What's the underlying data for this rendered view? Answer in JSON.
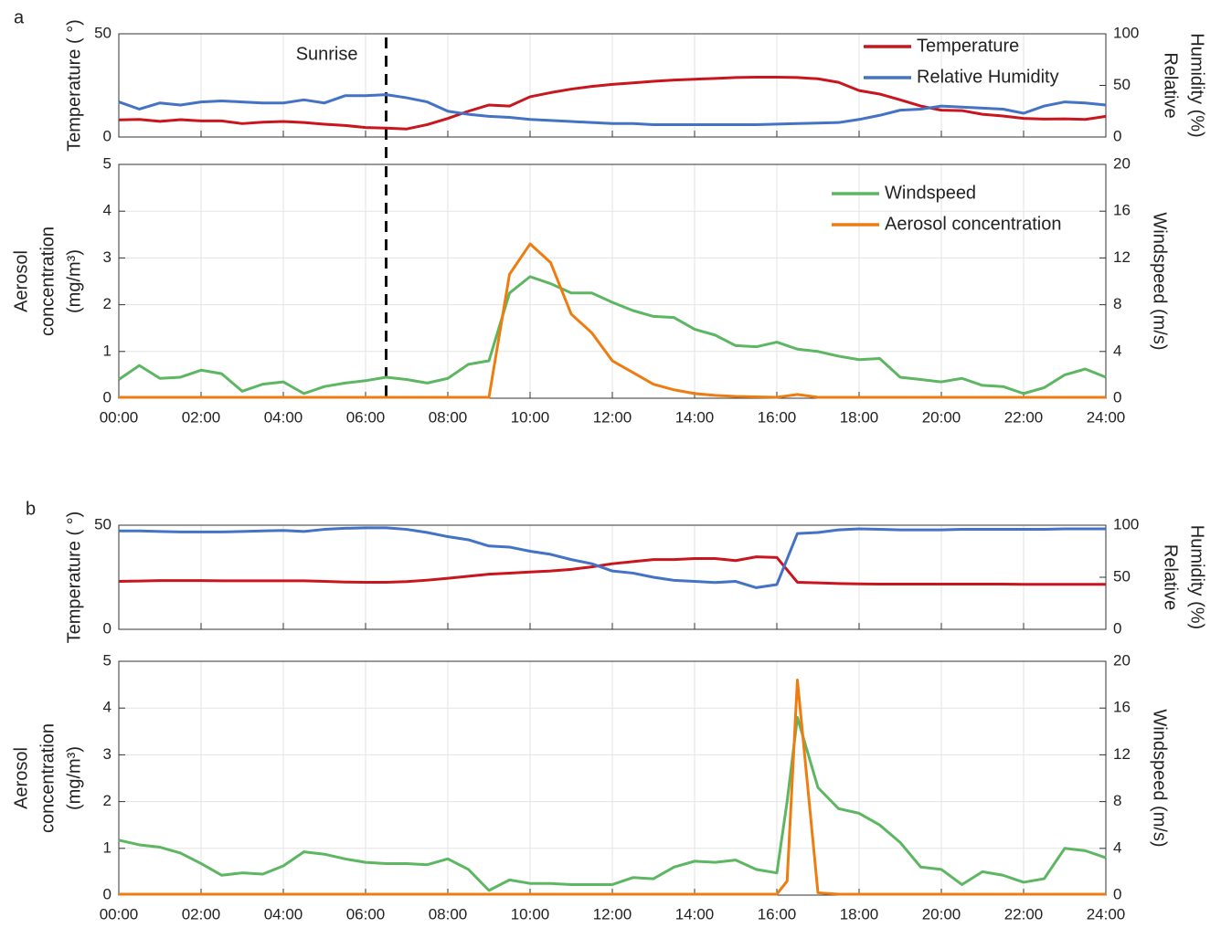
{
  "chart_data": [
    {
      "type": "line",
      "panel_label": "a",
      "ylabel": [
        "Temperature ( °)"
      ],
      "y2label": [
        "Relative",
        "Humidity (%)"
      ],
      "xlim": [
        0,
        24
      ],
      "xticks": [
        0,
        2,
        4,
        6,
        8,
        10,
        12,
        14,
        16,
        18,
        20,
        22,
        24
      ],
      "ylim": [
        0,
        50
      ],
      "yticks": [
        0,
        50
      ],
      "y2lim": [
        0,
        100
      ],
      "y2ticks": [
        0,
        50,
        100
      ],
      "grid": true,
      "legend": "upper right",
      "annotations": [
        {
          "text": "Sunrise",
          "x": 6.5
        }
      ],
      "x": [
        0,
        0.5,
        1,
        1.5,
        2,
        2.5,
        3,
        3.5,
        4,
        4.5,
        5,
        5.5,
        6,
        6.5,
        7,
        7.5,
        8,
        8.5,
        9,
        9.5,
        10,
        10.5,
        11,
        11.5,
        12,
        12.5,
        13,
        13.5,
        14,
        14.5,
        15,
        15.5,
        16,
        16.5,
        17,
        17.5,
        18,
        18.5,
        19,
        19.5,
        20,
        20.5,
        21,
        21.5,
        22,
        22.5,
        23,
        23.5,
        24
      ],
      "series": [
        {
          "name": "Temperature",
          "color": "#c9151e",
          "values": [
            8.3,
            8.5,
            7.6,
            8.4,
            7.8,
            7.8,
            6.5,
            7.2,
            7.5,
            7.0,
            6.2,
            5.6,
            4.6,
            4.3,
            3.9,
            6.0,
            9.0,
            12.5,
            15.5,
            15.0,
            19.5,
            21.5,
            23.2,
            24.5,
            25.5,
            26.2,
            27.0,
            27.6,
            28.0,
            28.4,
            28.8,
            29.0,
            29.0,
            28.8,
            28.2,
            26.5,
            22.5,
            20.8,
            18.0,
            15.0,
            13.0,
            12.8,
            11.0,
            10.2,
            9.0,
            8.7,
            8.8,
            8.5,
            10.0
          ]
        },
        {
          "name": "Relative Humidity",
          "color": "#4472c4",
          "axis": "y2",
          "values": [
            34,
            27,
            33,
            31,
            34,
            35,
            34,
            33,
            33,
            36,
            33,
            40,
            40,
            41,
            38,
            34,
            25,
            22,
            20,
            19,
            17,
            16,
            15,
            14,
            13,
            13,
            12,
            12,
            12,
            12,
            12,
            12,
            12.5,
            13,
            13.5,
            14,
            17,
            21,
            26,
            27,
            30,
            29,
            28,
            27,
            23,
            30,
            34,
            33,
            31
          ]
        }
      ]
    },
    {
      "type": "line",
      "ylabel": [
        "Aerosol",
        "concentration",
        "(mg/m³)"
      ],
      "y2label": [
        "Windspeed (m/s)"
      ],
      "xlim": [
        0,
        24
      ],
      "xticks": [
        {
          "value": 0,
          "label": "00:00"
        },
        {
          "value": 2,
          "label": "02:00"
        },
        {
          "value": 4,
          "label": "04:00"
        },
        {
          "value": 6,
          "label": "06:00"
        },
        {
          "value": 8,
          "label": "08:00"
        },
        {
          "value": 10,
          "label": "10:00"
        },
        {
          "value": 12,
          "label": "12:00"
        },
        {
          "value": 14,
          "label": "14:00"
        },
        {
          "value": 16,
          "label": "16:00"
        },
        {
          "value": 18,
          "label": "18:00"
        },
        {
          "value": 20,
          "label": "20:00"
        },
        {
          "value": 22,
          "label": "22:00"
        },
        {
          "value": 24,
          "label": "24:00"
        }
      ],
      "ylim": [
        0,
        5
      ],
      "yticks": [
        0,
        1,
        2,
        3,
        4,
        5
      ],
      "y2lim": [
        0,
        20
      ],
      "y2ticks": [
        0,
        4,
        8,
        12,
        16,
        20
      ],
      "grid": true,
      "legend": "upper right",
      "vlines": [
        6.5
      ],
      "x": [
        0,
        0.5,
        1,
        1.5,
        2,
        2.5,
        3,
        3.5,
        4,
        4.5,
        5,
        5.5,
        6,
        6.5,
        7,
        7.5,
        8,
        8.5,
        9,
        9.5,
        10,
        10.5,
        11,
        11.5,
        12,
        12.5,
        13,
        13.5,
        14,
        14.5,
        15,
        15.5,
        16,
        16.5,
        17,
        17.5,
        18,
        18.5,
        19,
        19.5,
        20,
        20.5,
        21,
        21.5,
        22,
        22.5,
        23,
        23.5,
        24
      ],
      "series": [
        {
          "name": "Windspeed",
          "color": "#5db662",
          "axis": "y2",
          "values": [
            1.6,
            2.8,
            1.7,
            1.8,
            2.4,
            2.1,
            0.6,
            1.2,
            1.4,
            0.4,
            1.0,
            1.3,
            1.5,
            1.8,
            1.6,
            1.3,
            1.7,
            2.9,
            3.2,
            9.0,
            10.4,
            9.8,
            9.0,
            9.0,
            8.2,
            7.5,
            7.0,
            6.9,
            5.9,
            5.4,
            4.5,
            4.4,
            4.8,
            4.2,
            4.0,
            3.6,
            3.3,
            3.4,
            1.8,
            1.6,
            1.4,
            1.7,
            1.1,
            1.0,
            0.4,
            0.9,
            2.0,
            2.5,
            1.8
          ]
        },
        {
          "name": "Aerosol concentration",
          "color": "#ee7d11",
          "values": [
            0.02,
            0.02,
            0.02,
            0.02,
            0.02,
            0.02,
            0.02,
            0.02,
            0.02,
            0.02,
            0.02,
            0.02,
            0.02,
            0.02,
            0.02,
            0.02,
            0.02,
            0.02,
            0.02,
            2.65,
            3.3,
            2.9,
            1.8,
            1.4,
            0.8,
            0.55,
            0.3,
            0.18,
            0.1,
            0.06,
            0.04,
            0.03,
            0.02,
            0.08,
            0.02,
            0.02,
            0.02,
            0.02,
            0.02,
            0.02,
            0.02,
            0.02,
            0.02,
            0.02,
            0.02,
            0.02,
            0.02,
            0.02,
            0.02
          ]
        }
      ]
    },
    {
      "type": "line",
      "panel_label": "b",
      "ylabel": [
        "Temperature ( °)"
      ],
      "y2label": [
        "Relative",
        "Humidity (%)"
      ],
      "xlim": [
        0,
        24
      ],
      "xticks": [
        0,
        2,
        4,
        6,
        8,
        10,
        12,
        14,
        16,
        18,
        20,
        22,
        24
      ],
      "ylim": [
        0,
        50
      ],
      "yticks": [
        0,
        50
      ],
      "y2lim": [
        0,
        100
      ],
      "y2ticks": [
        0,
        50,
        100
      ],
      "grid": true,
      "x": [
        0,
        0.5,
        1,
        1.5,
        2,
        2.5,
        3,
        3.5,
        4,
        4.5,
        5,
        5.5,
        6,
        6.5,
        7,
        7.5,
        8,
        8.5,
        9,
        9.5,
        10,
        10.5,
        11,
        11.5,
        12,
        12.5,
        13,
        13.5,
        14,
        14.5,
        15,
        15.5,
        16,
        16.5,
        17,
        17.5,
        18,
        18.5,
        19,
        19.5,
        20,
        20.5,
        21,
        21.5,
        22,
        22.5,
        23,
        23.5,
        24
      ],
      "series": [
        {
          "name": "Temperature",
          "color": "#c9151e",
          "values": [
            23,
            23.2,
            23.4,
            23.4,
            23.4,
            23.3,
            23.3,
            23.3,
            23.3,
            23.3,
            23,
            22.7,
            22.6,
            22.6,
            22.9,
            23.6,
            24.5,
            25.5,
            26.5,
            27,
            27.5,
            28,
            28.8,
            30,
            31.5,
            32.5,
            33.5,
            33.5,
            34,
            34,
            33,
            34.8,
            34.5,
            22.6,
            22.3,
            22,
            21.8,
            21.7,
            21.7,
            21.7,
            21.7,
            21.7,
            21.7,
            21.7,
            21.6,
            21.6,
            21.6,
            21.6,
            21.6
          ]
        },
        {
          "name": "Relative Humidity",
          "color": "#4472c4",
          "axis": "y2",
          "values": [
            94.5,
            94.5,
            94,
            93.5,
            93.5,
            93.5,
            94,
            94.5,
            95,
            94,
            96,
            97,
            97.5,
            97.5,
            96,
            93,
            89,
            86,
            80,
            79,
            75,
            72,
            67,
            63,
            56,
            54,
            50,
            47,
            46,
            45,
            46,
            40,
            43,
            92,
            93,
            95.5,
            96.5,
            96,
            95.5,
            95.5,
            95.5,
            96,
            96,
            96,
            96,
            96,
            96.5,
            96.5,
            96.5
          ]
        }
      ]
    },
    {
      "type": "line",
      "ylabel": [
        "Aerosol",
        "concentration",
        "(mg/m³)"
      ],
      "y2label": [
        "Windspeed (m/s)"
      ],
      "xlim": [
        0,
        24
      ],
      "xticks": [
        {
          "value": 0,
          "label": "00:00"
        },
        {
          "value": 2,
          "label": "02:00"
        },
        {
          "value": 4,
          "label": "04:00"
        },
        {
          "value": 6,
          "label": "06:00"
        },
        {
          "value": 8,
          "label": "08:00"
        },
        {
          "value": 10,
          "label": "10:00"
        },
        {
          "value": 12,
          "label": "12:00"
        },
        {
          "value": 14,
          "label": "14:00"
        },
        {
          "value": 16,
          "label": "16:00"
        },
        {
          "value": 18,
          "label": "18:00"
        },
        {
          "value": 20,
          "label": "20:00"
        },
        {
          "value": 22,
          "label": "22:00"
        },
        {
          "value": 24,
          "label": "24:00"
        }
      ],
      "ylim": [
        0,
        5
      ],
      "yticks": [
        0,
        1,
        2,
        3,
        4,
        5
      ],
      "y2lim": [
        0,
        20
      ],
      "y2ticks": [
        0,
        4,
        8,
        12,
        16,
        20
      ],
      "grid": true,
      "x": [
        0,
        0.5,
        1,
        1.5,
        2,
        2.5,
        3,
        3.5,
        4,
        4.5,
        5,
        5.5,
        6,
        6.5,
        7,
        7.5,
        8,
        8.5,
        9,
        9.5,
        10,
        10.5,
        11,
        11.5,
        12,
        12.5,
        13,
        13.5,
        14,
        14.5,
        15,
        15.5,
        16,
        16.25,
        16.5,
        17,
        17.5,
        18,
        18.5,
        19,
        19.5,
        20,
        20.5,
        21,
        21.5,
        22,
        22.5,
        23,
        23.5,
        24
      ],
      "series": [
        {
          "name": "Windspeed",
          "color": "#5db662",
          "axis": "y2",
          "values": [
            4.7,
            4.3,
            4.1,
            3.6,
            2.7,
            1.7,
            1.9,
            1.8,
            2.5,
            3.7,
            3.5,
            3.1,
            2.8,
            2.7,
            2.7,
            2.6,
            3.1,
            2.2,
            0.4,
            1.3,
            1.0,
            1.0,
            0.9,
            0.9,
            0.9,
            1.5,
            1.4,
            2.4,
            2.9,
            2.8,
            3.0,
            2.2,
            1.9,
            8.0,
            15.2,
            9.2,
            7.4,
            7.0,
            6.0,
            4.5,
            2.4,
            2.2,
            0.9,
            2.0,
            1.7,
            1.1,
            1.4,
            4.0,
            3.8,
            3.2
          ]
        },
        {
          "name": "Aerosol concentration",
          "color": "#ee7d11",
          "values": [
            0.02,
            0.02,
            0.02,
            0.02,
            0.02,
            0.02,
            0.02,
            0.02,
            0.02,
            0.02,
            0.02,
            0.02,
            0.02,
            0.02,
            0.02,
            0.02,
            0.02,
            0.02,
            0.02,
            0.02,
            0.02,
            0.02,
            0.02,
            0.02,
            0.02,
            0.02,
            0.02,
            0.02,
            0.02,
            0.02,
            0.02,
            0.02,
            0.02,
            0.3,
            4.6,
            0.05,
            0.02,
            0.02,
            0.02,
            0.02,
            0.02,
            0.02,
            0.02,
            0.02,
            0.02,
            0.02,
            0.02,
            0.02,
            0.02,
            0.02
          ]
        }
      ]
    }
  ]
}
